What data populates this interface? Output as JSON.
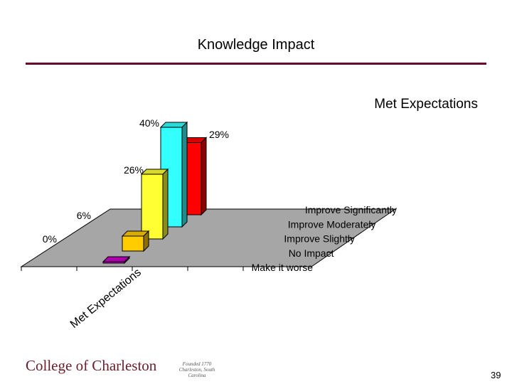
{
  "slide": {
    "title": "Knowledge Impact",
    "page_number": "39",
    "colors": {
      "title_rule": "#660033",
      "logo_text": "#6b1d2a"
    }
  },
  "footer": {
    "logo_text": "College of Charleston",
    "founded_line1": "Founded 1770",
    "founded_line2": "Charleston, South Carolina"
  },
  "chart_data": {
    "type": "bar",
    "style": "3d",
    "title": "Met Expectations",
    "xlabel": "",
    "ylabel": "",
    "series_axis_label": "Met Expectations",
    "grid": false,
    "categories": [
      "Make it worse",
      "No Impact",
      "Improve Slightly",
      "Improve Moderately",
      "Improve Significantly"
    ],
    "values": [
      0,
      6,
      26,
      40,
      29
    ],
    "value_labels": [
      "0%",
      "6%",
      "26%",
      "40%",
      "29%"
    ],
    "ylim": [
      0,
      40
    ],
    "bar_colors": [
      "#cc00cc",
      "#ffcc00",
      "#ffff33",
      "#33ffff",
      "#ff0000"
    ],
    "floor_color": "#a6a6a6"
  }
}
